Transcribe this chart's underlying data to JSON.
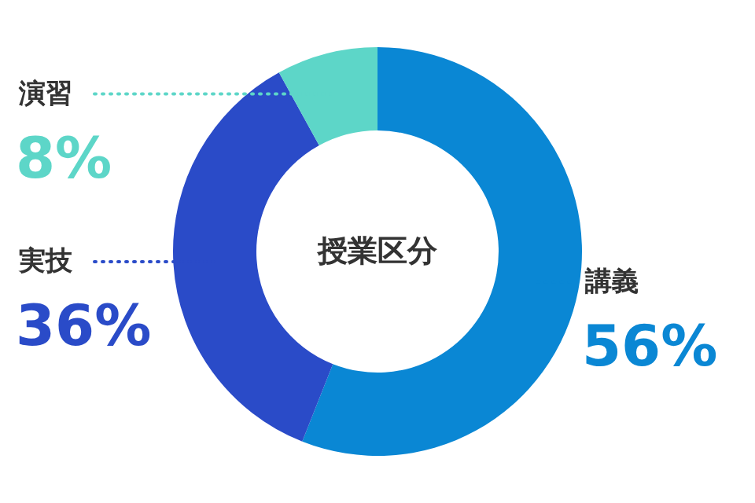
{
  "chart_data": {
    "type": "donut",
    "title": "授業区分",
    "categories": [
      "講義",
      "実技",
      "演習"
    ],
    "values": [
      56,
      36,
      8
    ],
    "colors": [
      "#0a87d4",
      "#2a4bc8",
      "#5dd6c8"
    ],
    "value_labels": [
      "56%",
      "36%",
      "8%"
    ]
  }
}
